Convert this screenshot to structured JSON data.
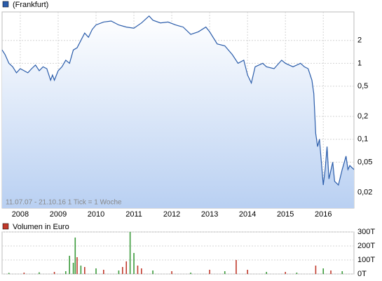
{
  "chart_data": [
    {
      "type": "line",
      "log_scale": true,
      "grid": true,
      "annotation": "11.07.07 - 21.10.16   1 Tick = 1 Woche",
      "x": [
        2007.52,
        2007.6,
        2007.7,
        2007.8,
        2007.9,
        2008.0,
        2008.1,
        2008.2,
        2008.3,
        2008.4,
        2008.5,
        2008.6,
        2008.7,
        2008.8,
        2008.85,
        2008.9,
        2009.0,
        2009.1,
        2009.2,
        2009.3,
        2009.4,
        2009.5,
        2009.6,
        2009.7,
        2009.8,
        2009.9,
        2010.0,
        2010.2,
        2010.4,
        2010.6,
        2010.8,
        2011.0,
        2011.2,
        2011.4,
        2011.5,
        2011.7,
        2011.9,
        2012.1,
        2012.3,
        2012.5,
        2012.7,
        2012.9,
        2013.0,
        2013.2,
        2013.4,
        2013.6,
        2013.75,
        2013.9,
        2014.0,
        2014.1,
        2014.2,
        2014.4,
        2014.5,
        2014.7,
        2014.9,
        2015.0,
        2015.2,
        2015.4,
        2015.5,
        2015.6,
        2015.7,
        2015.75,
        2015.8,
        2015.85,
        2015.9,
        2015.95,
        2016.0,
        2016.05,
        2016.1,
        2016.15,
        2016.25,
        2016.3,
        2016.4,
        2016.5,
        2016.6,
        2016.65,
        2016.7,
        2016.81
      ],
      "series": [
        {
          "name": "(Frankfurt)",
          "color": "#2a5caa",
          "values": [
            1.5,
            1.3,
            1.0,
            0.9,
            0.75,
            0.85,
            0.8,
            0.75,
            0.85,
            0.95,
            0.8,
            0.9,
            0.85,
            0.6,
            0.7,
            0.6,
            0.8,
            0.9,
            1.1,
            1.0,
            1.5,
            1.6,
            2.0,
            2.5,
            2.2,
            2.8,
            3.2,
            3.5,
            3.6,
            3.2,
            3.0,
            2.9,
            3.4,
            4.2,
            3.7,
            3.4,
            3.5,
            3.2,
            3.0,
            2.4,
            2.6,
            3.0,
            2.6,
            1.8,
            1.7,
            1.3,
            1.0,
            1.1,
            0.7,
            0.55,
            0.9,
            1.0,
            0.9,
            0.85,
            1.1,
            1.0,
            0.9,
            1.0,
            0.9,
            0.85,
            0.6,
            0.4,
            0.12,
            0.08,
            0.1,
            0.05,
            0.025,
            0.04,
            0.08,
            0.03,
            0.05,
            0.028,
            0.025,
            0.04,
            0.06,
            0.04,
            0.045,
            0.04
          ]
        }
      ],
      "xlim": [
        2007.52,
        2016.81
      ],
      "xticks": [
        2008,
        2009,
        2010,
        2011,
        2012,
        2013,
        2014,
        2015,
        2016
      ],
      "ylim": [
        0.0124,
        4.75
      ],
      "yticks": [
        2,
        1,
        {
          "value": 0.5,
          "label": "0,5"
        },
        {
          "value": 0.2,
          "label": "0,2"
        },
        {
          "value": 0.1,
          "label": "0,1"
        },
        {
          "value": 0.05,
          "label": "0,05"
        },
        {
          "value": 0.02,
          "label": "0,02"
        }
      ]
    },
    {
      "type": "bar",
      "grid": true,
      "x": [
        2007.7,
        2008.1,
        2008.5,
        2008.9,
        2009.2,
        2009.3,
        2009.4,
        2009.45,
        2009.5,
        2009.6,
        2009.7,
        2010.0,
        2010.2,
        2010.6,
        2010.7,
        2010.8,
        2010.9,
        2011.0,
        2011.1,
        2011.2,
        2011.5,
        2012.0,
        2012.5,
        2013.0,
        2013.4,
        2013.7,
        2014.0,
        2014.5,
        2015.0,
        2015.3,
        2015.8,
        2016.0,
        2016.2,
        2016.5
      ],
      "series": [
        {
          "name": "Volumen in Euro",
          "color": "#c0392b",
          "values": [
            8000,
            10000,
            12000,
            15000,
            20000,
            130000,
            80000,
            260000,
            120000,
            60000,
            50000,
            40000,
            30000,
            25000,
            50000,
            90000,
            300000,
            150000,
            60000,
            40000,
            25000,
            20000,
            10000,
            30000,
            20000,
            100000,
            30000,
            15000,
            15000,
            10000,
            60000,
            40000,
            25000,
            20000
          ],
          "colors": [
            "#3a9a3a",
            "#c0392b",
            "#3a9a3a",
            "#c0392b",
            "#3a9a3a",
            "#3a9a3a",
            "#3a9a3a",
            "#3a9a3a",
            "#c0392b",
            "#3a9a3a",
            "#c0392b",
            "#3a9a3a",
            "#c0392b",
            "#3a9a3a",
            "#c0392b",
            "#c0392b",
            "#3a9a3a",
            "#3a9a3a",
            "#c0392b",
            "#c0392b",
            "#3a9a3a",
            "#c0392b",
            "#3a9a3a",
            "#c0392b",
            "#3a9a3a",
            "#c0392b",
            "#c0392b",
            "#3a9a3a",
            "#c0392b",
            "#3a9a3a",
            "#c0392b",
            "#3a9a3a",
            "#c0392b",
            "#3a9a3a"
          ]
        }
      ],
      "xlim": [
        2007.52,
        2016.81
      ],
      "ylim": [
        0,
        300000
      ],
      "yticks": [
        {
          "value": 300000,
          "label": "300T"
        },
        {
          "value": 200000,
          "label": "200T"
        },
        {
          "value": 100000,
          "label": "100T"
        },
        {
          "value": 0,
          "label": "0T"
        }
      ]
    }
  ]
}
